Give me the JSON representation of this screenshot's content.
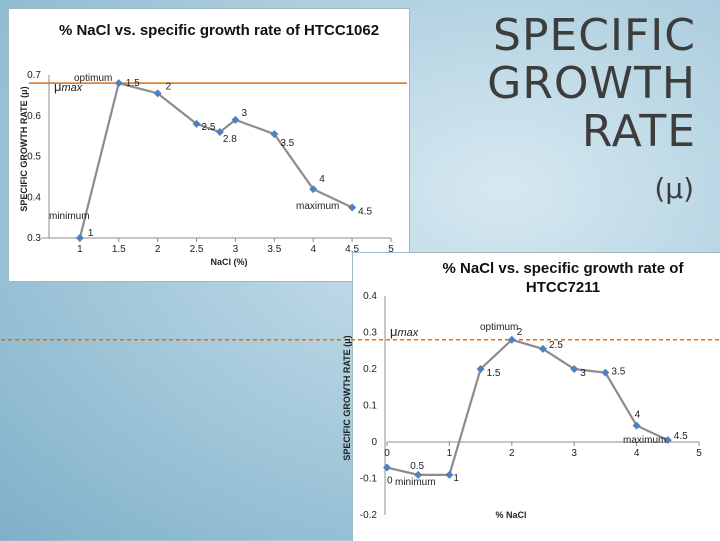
{
  "slide": {
    "title_lines": [
      "SPECIFIC",
      "GROWTH",
      "RATE"
    ],
    "subtitle": "(μ)"
  },
  "colors": {
    "series": "#4f81bd",
    "series_line": "#8c8c8c",
    "mumax_line": "#e46c0a",
    "axis": "#8c8c8c"
  },
  "chart_data": [
    {
      "type": "scatter",
      "title": "% NaCl vs. specific growth rate of HTCC1062",
      "xlabel": "NaCl (%)",
      "ylabel": "SPECIFIC GROWTH RATE (μ)",
      "xlim": [
        0.5,
        5
      ],
      "ylim": [
        0.3,
        0.7
      ],
      "x_ticks": [
        "1",
        "1.5",
        "2",
        "2.5",
        "3",
        "3.5",
        "4",
        "4.5",
        "5"
      ],
      "y_ticks": [
        "0.3",
        "0.4",
        "0.5",
        "0.6",
        "0.7"
      ],
      "mumax_label": "μmax",
      "mumax_value": 0.68,
      "series": [
        {
          "points": [
            {
              "x": 1,
              "y": 0.3,
              "label": "1"
            },
            {
              "x": 1.5,
              "y": 0.68,
              "label": "1.5"
            },
            {
              "x": 2,
              "y": 0.655,
              "label": "2"
            },
            {
              "x": 2.5,
              "y": 0.58,
              "label": "2.5"
            },
            {
              "x": 2.8,
              "y": 0.56,
              "label": "2.8"
            },
            {
              "x": 3,
              "y": 0.59,
              "label": "3"
            },
            {
              "x": 3.5,
              "y": 0.555,
              "label": "3.5"
            },
            {
              "x": 4,
              "y": 0.42,
              "label": "4"
            },
            {
              "x": 4.5,
              "y": 0.375,
              "label": "4.5"
            }
          ]
        }
      ],
      "annotations": [
        "optimum",
        "maximum",
        "minimum"
      ],
      "grid": false
    },
    {
      "type": "scatter",
      "title": "% NaCl vs. specific growth rate of HTCC7211",
      "xlabel": "% NaCl",
      "ylabel": "SPECIFIC GROWTH RATE (μ)",
      "xlim": [
        0,
        5
      ],
      "ylim": [
        -0.2,
        0.4
      ],
      "x_ticks": [
        "0",
        "1",
        "2",
        "3",
        "4",
        "5"
      ],
      "y_ticks": [
        "-0.2",
        "-0.1",
        "0",
        "0.1",
        "0.2",
        "0.3",
        "0.4"
      ],
      "mumax_label": "μmax",
      "mumax_value": 0.28,
      "series": [
        {
          "points": [
            {
              "x": 0,
              "y": -0.07,
              "label": "0"
            },
            {
              "x": 0.5,
              "y": -0.09,
              "label": "0.5"
            },
            {
              "x": 1,
              "y": -0.09,
              "label": "1"
            },
            {
              "x": 1.5,
              "y": 0.2,
              "label": "1.5"
            },
            {
              "x": 2,
              "y": 0.28,
              "label": "2"
            },
            {
              "x": 2.5,
              "y": 0.255,
              "label": "2.5"
            },
            {
              "x": 3,
              "y": 0.2,
              "label": "3"
            },
            {
              "x": 3.5,
              "y": 0.19,
              "label": "3.5"
            },
            {
              "x": 4,
              "y": 0.045,
              "label": "4"
            },
            {
              "x": 4.5,
              "y": 0.005,
              "label": "4.5"
            }
          ]
        }
      ],
      "annotations": [
        "optimum",
        "maximum",
        "minimum"
      ],
      "grid": false
    }
  ]
}
